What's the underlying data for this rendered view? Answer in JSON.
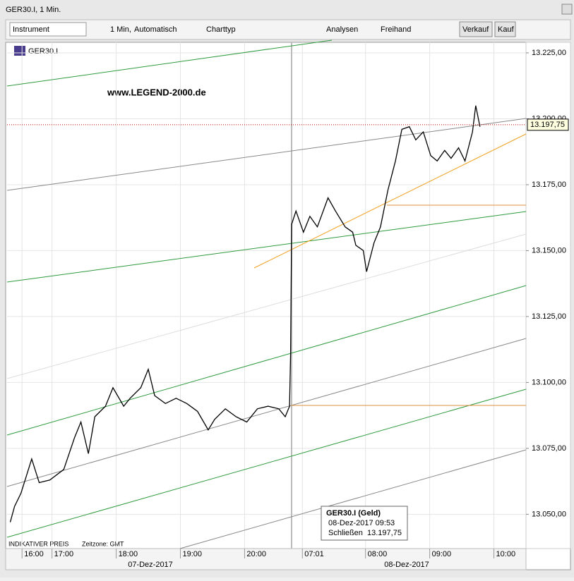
{
  "window": {
    "title": "GER30.I, 1 Min."
  },
  "toolbar": {
    "instrument_placeholder": "Instrument",
    "interval": "1 Min,",
    "scale": "Automatisch",
    "chart_type": "Charttyp",
    "analyses": "Analysen",
    "freehand": "Freihand",
    "sell": "Verkauf",
    "buy": "Kauf"
  },
  "chart_data": {
    "type": "line",
    "symbol": "GER30.I",
    "watermark": "www.LEGEND-2000.de",
    "footer_note": "INDIKATIVER PREIS",
    "timezone": "Zeitzone: GMT",
    "last_price": {
      "value": 13197.75,
      "label": "13.197,75"
    },
    "tooltip": {
      "title": "GER30.I (Geld)",
      "time": "08-Dez-2017 09:53",
      "field": "Schließen",
      "value": "13.197,75"
    },
    "date_labels": [
      "07-Dez-2017",
      "08-Dez-2017"
    ],
    "xlim": [
      0,
      485
    ],
    "xticks": [
      {
        "value": 14,
        "label": "16:00"
      },
      {
        "value": 42,
        "label": "17:00"
      },
      {
        "value": 102,
        "label": "18:00"
      },
      {
        "value": 162,
        "label": "19:00"
      },
      {
        "value": 222,
        "label": "20:00"
      },
      {
        "value": 276,
        "label": "07:01"
      },
      {
        "value": 335,
        "label": "08:00"
      },
      {
        "value": 395,
        "label": "09:00"
      },
      {
        "value": 455,
        "label": "10:00"
      }
    ],
    "ylim": [
      13037,
      13229
    ],
    "yticks": [
      {
        "value": 13050,
        "label": "13.050,00"
      },
      {
        "value": 13075,
        "label": "13.075,00"
      },
      {
        "value": 13100,
        "label": "13.100,00"
      },
      {
        "value": 13125,
        "label": "13.125,00"
      },
      {
        "value": 13150,
        "label": "13.150,00"
      },
      {
        "value": 13175,
        "label": "13.175,00"
      },
      {
        "value": 13200,
        "label": "13.200,00"
      },
      {
        "value": 13225,
        "label": "13.225,00"
      }
    ],
    "grid": true,
    "series": [
      {
        "color": "#000000",
        "x": [
          3,
          7,
          13,
          23,
          30,
          40,
          53,
          63,
          69,
          76,
          82,
          92,
          99,
          109,
          115,
          125,
          132,
          138,
          148,
          158,
          168,
          178,
          188,
          194,
          204,
          214,
          224,
          234,
          244,
          254,
          260,
          264,
          265,
          266,
          270,
          277,
          283,
          290,
          300,
          307,
          316,
          323,
          326,
          333,
          336,
          343,
          349,
          356,
          363,
          369,
          376,
          382,
          389,
          396,
          402,
          409,
          415,
          422,
          428,
          435,
          438,
          442
        ],
        "values": [
          13047,
          13053,
          13058,
          13071,
          13062,
          13063,
          13067,
          13079,
          13085,
          13073,
          13087,
          13091,
          13098,
          13091,
          13094,
          13098,
          13105,
          13095,
          13092,
          13094,
          13092,
          13089,
          13082,
          13086,
          13090,
          13087,
          13085,
          13090,
          13091,
          13090,
          13087,
          13091,
          13111,
          13160,
          13165,
          13157,
          13163,
          13159,
          13170,
          13165,
          13159,
          13157,
          13152,
          13150,
          13142,
          13153,
          13159,
          13173,
          13184,
          13196,
          13197,
          13192,
          13195,
          13186,
          13184,
          13188,
          13185,
          13189,
          13184,
          13195,
          13205,
          13197
        ]
      }
    ]
  }
}
